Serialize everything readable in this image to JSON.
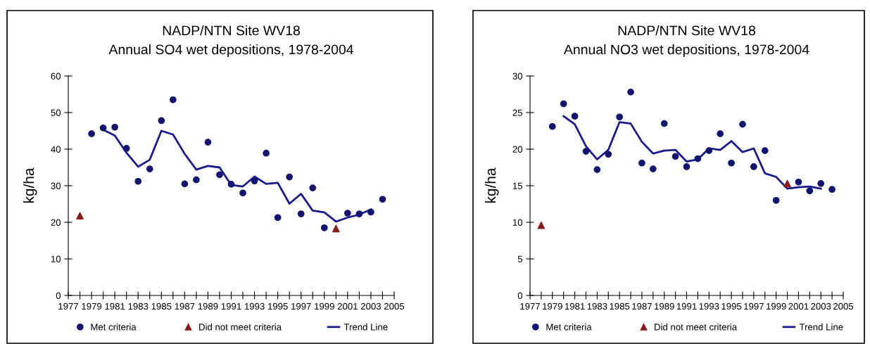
{
  "chart_data": [
    {
      "type": "scatter",
      "title": "NADP/NTN Site WV18",
      "subtitle": "Annual SO4 wet depositions, 1978-2004",
      "ylabel": "kg/ha",
      "xlim": [
        1977,
        2005
      ],
      "xticks": [
        1977,
        {
          "value": 1978,
          "label": null
        },
        1979,
        {
          "value": 1980,
          "label": null
        },
        1981,
        {
          "value": 1982,
          "label": null
        },
        1983,
        {
          "value": 1984,
          "label": null
        },
        1985,
        {
          "value": 1986,
          "label": null
        },
        1987,
        {
          "value": 1988,
          "label": null
        },
        1989,
        {
          "value": 1990,
          "label": null
        },
        1991,
        {
          "value": 1992,
          "label": null
        },
        1993,
        {
          "value": 1994,
          "label": null
        },
        1995,
        {
          "value": 1996,
          "label": null
        },
        1997,
        {
          "value": 1998,
          "label": null
        },
        1999,
        {
          "value": 2000,
          "label": null
        },
        2001,
        {
          "value": 2002,
          "label": null
        },
        2003,
        {
          "value": 2004,
          "label": null
        },
        2005
      ],
      "ylim": [
        0,
        60
      ],
      "yticks": [
        0,
        10,
        20,
        30,
        40,
        50,
        60
      ],
      "grid": false,
      "legend": "bottom",
      "series": [
        {
          "name": "Met criteria",
          "marker": "circle",
          "color": "#141470",
          "x": [
            1979,
            1980,
            1981,
            1982,
            1983,
            1984,
            1985,
            1986,
            1987,
            1988,
            1989,
            1990,
            1991,
            1992,
            1993,
            1994,
            1995,
            1996,
            1997,
            1998,
            1999,
            2001,
            2002,
            2003,
            2004
          ],
          "values": [
            44.2,
            45.8,
            46,
            40.2,
            31.2,
            34.6,
            47.8,
            53.5,
            30.5,
            31.6,
            41.9,
            33,
            30.4,
            28,
            31.3,
            38.9,
            21.3,
            32.4,
            22.3,
            29.4,
            18.5,
            22.5,
            22.3,
            22.8,
            26.3
          ]
        },
        {
          "name": "Did not meet criteria",
          "marker": "triangle",
          "color": "#8b1a1a",
          "x": [
            1978,
            2000
          ],
          "values": [
            21.8,
            18.3
          ]
        },
        {
          "name": "Trend Line",
          "type": "line",
          "marker": "none",
          "color": "#1a1a8c",
          "x": [
            1980,
            1981,
            1982,
            1983,
            1984,
            1985,
            1986,
            1987,
            1988,
            1989,
            1990,
            1991,
            1992,
            1993,
            1994,
            1995,
            1996,
            1997,
            1998,
            1999,
            2000,
            2001,
            2002,
            2003
          ],
          "values": [
            45.3,
            43.7,
            39,
            35.2,
            37.1,
            45,
            44,
            38.7,
            34.4,
            35.4,
            35,
            30.2,
            29.8,
            32.5,
            30.5,
            30.8,
            25.1,
            27.8,
            23.2,
            22.7,
            20.2,
            21.3,
            22.1,
            23.5
          ]
        }
      ]
    },
    {
      "type": "scatter",
      "title": "NADP/NTN Site WV18",
      "subtitle": "Annual NO3 wet depositions, 1978-2004",
      "ylabel": "kg/ha",
      "xlim": [
        1977,
        2005
      ],
      "xticks": [
        1977,
        {
          "value": 1978,
          "label": null
        },
        1979,
        {
          "value": 1980,
          "label": null
        },
        1981,
        {
          "value": 1982,
          "label": null
        },
        1983,
        {
          "value": 1984,
          "label": null
        },
        1985,
        {
          "value": 1986,
          "label": null
        },
        1987,
        {
          "value": 1988,
          "label": null
        },
        1989,
        {
          "value": 1990,
          "label": null
        },
        1991,
        {
          "value": 1992,
          "label": null
        },
        1993,
        {
          "value": 1994,
          "label": null
        },
        1995,
        {
          "value": 1996,
          "label": null
        },
        1997,
        {
          "value": 1998,
          "label": null
        },
        1999,
        {
          "value": 2000,
          "label": null
        },
        2001,
        {
          "value": 2002,
          "label": null
        },
        2003,
        {
          "value": 2004,
          "label": null
        },
        2005
      ],
      "ylim": [
        0,
        30
      ],
      "yticks": [
        0,
        5,
        10,
        15,
        20,
        25,
        30
      ],
      "grid": false,
      "legend": "bottom",
      "series": [
        {
          "name": "Met criteria",
          "marker": "circle",
          "color": "#141470",
          "x": [
            1979,
            1980,
            1981,
            1982,
            1983,
            1984,
            1985,
            1986,
            1987,
            1988,
            1989,
            1990,
            1991,
            1992,
            1993,
            1994,
            1995,
            1996,
            1997,
            1998,
            1999,
            2001,
            2002,
            2003,
            2004
          ],
          "values": [
            23.1,
            26.2,
            24.5,
            19.7,
            17.2,
            19.3,
            24.4,
            27.8,
            18.1,
            17.3,
            23.5,
            19,
            17.6,
            18.7,
            19.8,
            22.1,
            18.1,
            23.4,
            17.6,
            19.8,
            13,
            15.5,
            14.3,
            15.3,
            14.5
          ]
        },
        {
          "name": "Did not meet criteria",
          "marker": "triangle",
          "color": "#8b1a1a",
          "x": [
            1978,
            2000
          ],
          "values": [
            9.6,
            15.3
          ]
        },
        {
          "name": "Trend Line",
          "type": "line",
          "marker": "none",
          "color": "#1a1a8c",
          "x": [
            1980,
            1981,
            1982,
            1983,
            1984,
            1985,
            1986,
            1987,
            1988,
            1989,
            1990,
            1991,
            1992,
            1993,
            1994,
            1995,
            1996,
            1997,
            1998,
            1999,
            2000,
            2001,
            2002,
            2003
          ],
          "values": [
            24.5,
            23.4,
            20.4,
            18.6,
            19.9,
            23.7,
            23.5,
            21,
            19.4,
            19.8,
            19.9,
            18.3,
            18.6,
            20.1,
            19.9,
            21.1,
            19.6,
            20.1,
            16.7,
            16.2,
            14.6,
            14.8,
            14.9,
            14.6
          ]
        }
      ]
    }
  ]
}
